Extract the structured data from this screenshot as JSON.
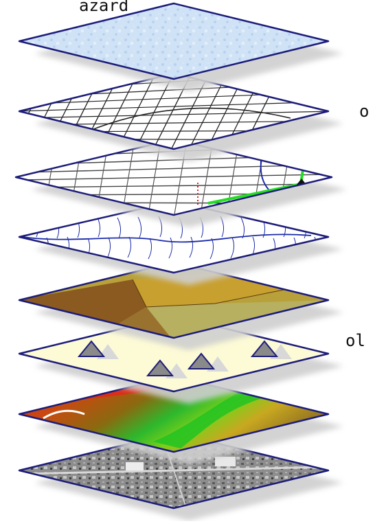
{
  "labels": {
    "hazard": "azard",
    "streets": "o",
    "symbols": "ol"
  },
  "layers": [
    {
      "id": "hazard",
      "fill": "#cfe2f6",
      "content": "texture"
    },
    {
      "id": "streets",
      "fill": "#ffffff",
      "content": "street-lines"
    },
    {
      "id": "transport",
      "fill": "#ffffff",
      "content": "roads-and-routes"
    },
    {
      "id": "hydrology",
      "fill": "#ffffff",
      "content": "stream-network"
    },
    {
      "id": "landcover",
      "fill": "#b8a13a",
      "content": "polygons"
    },
    {
      "id": "symbols",
      "fill": "#fdfbd6",
      "content": "triangle-markers"
    },
    {
      "id": "elevation",
      "fill": "#6b4a1a",
      "content": "colored-raster"
    },
    {
      "id": "imagery",
      "fill": "#8a8a8a",
      "content": "aerial-photo"
    }
  ],
  "colors": {
    "outline": "#1c1c7a",
    "shadow": "#cfcfcf",
    "route_green": "#22dd22",
    "stream_blue": "#1b2aa8",
    "marker_gray": "#8a8a8a"
  }
}
